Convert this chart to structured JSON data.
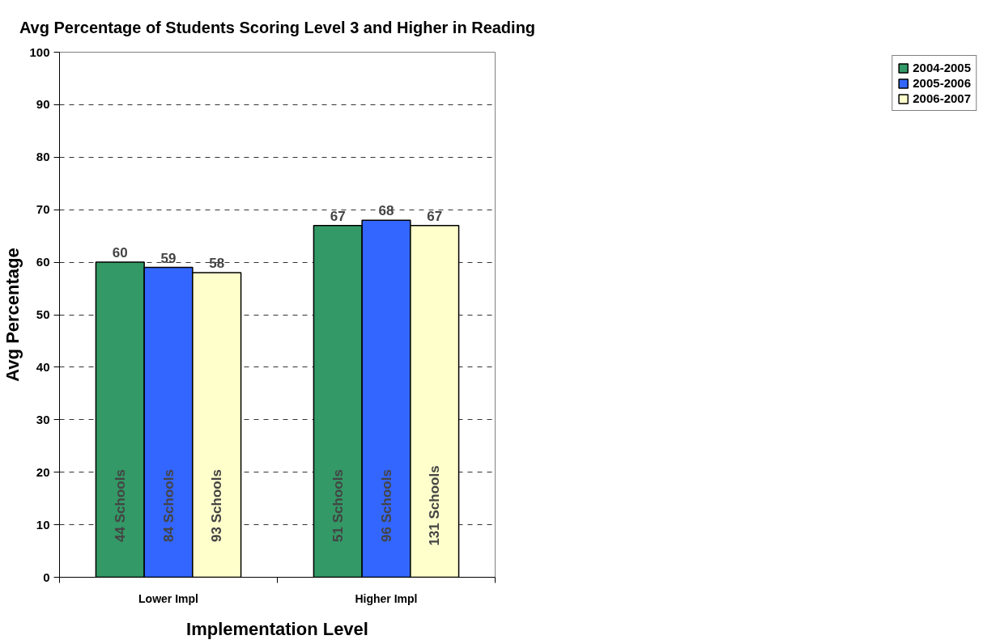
{
  "chart_data": {
    "type": "bar",
    "title": "Avg Percentage of Students Scoring Level 3 and Higher in Reading",
    "xlabel": "Implementation Level",
    "ylabel": "Avg Percentage",
    "categories": [
      "Lower Impl",
      "Higher Impl"
    ],
    "series": [
      {
        "name": "2004-2005",
        "color": "#339966",
        "values": [
          60,
          67
        ]
      },
      {
        "name": "2005-2006",
        "color": "#3366ff",
        "values": [
          59,
          68
        ]
      },
      {
        "name": "2006-2007",
        "color": "#ffffcc",
        "values": [
          58,
          67
        ]
      }
    ],
    "ylim": [
      0,
      100
    ],
    "yticks": [
      0,
      10,
      20,
      30,
      40,
      50,
      60,
      70,
      80,
      90,
      100
    ],
    "grid": "y",
    "legend": "right",
    "data_labels": true,
    "annotations": [
      "44  Schools",
      "84  Schools",
      "93  Schools",
      "51  Schools",
      "96  Schools",
      "131  Schools"
    ]
  }
}
